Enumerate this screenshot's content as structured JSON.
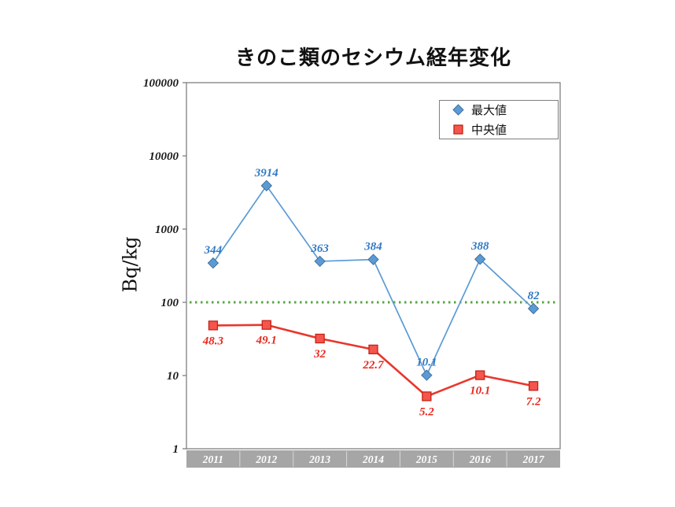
{
  "page": {
    "title": "きのこ類のセシウム経年変化"
  },
  "chart_data": {
    "type": "line",
    "title": "きのこ類のセシウム経年変化",
    "xlabel": "",
    "ylabel": "Bq/kg",
    "y_scale": "log",
    "ylim": [
      1,
      100000
    ],
    "y_ticks": [
      1,
      10,
      100,
      1000,
      10000,
      100000
    ],
    "grid": false,
    "categories": [
      "2011",
      "2012",
      "2013",
      "2014",
      "2015",
      "2016",
      "2017"
    ],
    "series": [
      {
        "name": "最大値",
        "marker": "diamond",
        "values": [
          344,
          3914,
          363,
          384,
          10.1,
          388,
          82
        ],
        "line_color": "#5B9BD5",
        "line_width": 1.7,
        "marker_fill": "#5B9BD5",
        "marker_edge": "#41719C",
        "label_color": "#3079C5",
        "label_position": "above"
      },
      {
        "name": "中央値",
        "marker": "square",
        "values": [
          48.3,
          49.1,
          32,
          22.7,
          5.2,
          10.1,
          7.2
        ],
        "line_color": "#E8372D",
        "line_width": 2.6,
        "marker_fill": "#F4554C",
        "marker_edge": "#C42318",
        "label_color": "#E8281E",
        "label_position": "below"
      }
    ],
    "reference_line": {
      "value": 100,
      "color": "#57A544",
      "style": "dotted"
    },
    "legend": {
      "position": "top-right"
    },
    "axis_color": "#7F7F7F",
    "x_band_color": "#A6A6A6"
  }
}
